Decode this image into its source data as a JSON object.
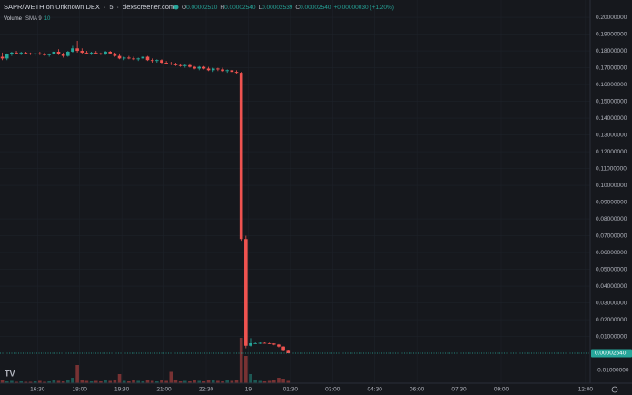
{
  "chart_data": {
    "type": "candlestick",
    "title": "SAPR/WETH on Unknown DEX",
    "interval": "5",
    "source": "dexscreener.com",
    "ohlc_legend": [
      {
        "key": "O",
        "value": "0.00002510"
      },
      {
        "key": "H",
        "value": "0.00002540"
      },
      {
        "key": "L",
        "value": "0.00002539"
      },
      {
        "key": "C",
        "value": "0.00002540"
      }
    ],
    "change": "+0.00000030 (+1.20%)",
    "volume_legend": {
      "name": "Volume",
      "indicator": "SMA 9",
      "value": "10"
    },
    "up_color": "#26a69a",
    "down_color": "#ef5350",
    "grid": true,
    "x": [
      915,
      925,
      935,
      945,
      955,
      965,
      975,
      985,
      995,
      1005,
      1015,
      1025,
      1035,
      1045,
      1055,
      1065,
      1075,
      1085,
      1095,
      1105,
      1115,
      1125,
      1135,
      1145,
      1155,
      1165,
      1175,
      1185,
      1195,
      1205,
      1215,
      1225,
      1235,
      1245,
      1255,
      1265,
      1275,
      1285,
      1295,
      1305,
      1315,
      1325,
      1335,
      1345,
      1355,
      1365,
      1375,
      1385,
      1395,
      1405,
      1415,
      1425,
      1435,
      1445,
      1455,
      1465,
      1475,
      1485,
      1495,
      1505,
      1515,
      1525
    ],
    "open": [
      0.1765,
      0.1755,
      0.178,
      0.179,
      0.1785,
      0.179,
      0.1785,
      0.178,
      0.1785,
      0.178,
      0.1775,
      0.178,
      0.1795,
      0.178,
      0.177,
      0.1795,
      0.1815,
      0.18,
      0.179,
      0.1785,
      0.179,
      0.1785,
      0.178,
      0.1795,
      0.1785,
      0.177,
      0.1755,
      0.176,
      0.1755,
      0.175,
      0.1755,
      0.1765,
      0.1745,
      0.174,
      0.1745,
      0.173,
      0.1725,
      0.172,
      0.1715,
      0.171,
      0.1715,
      0.1705,
      0.1695,
      0.1705,
      0.1695,
      0.1685,
      0.1695,
      0.169,
      0.168,
      0.1685,
      0.1675,
      0.167,
      0.068,
      0.0045,
      0.006,
      0.006,
      0.0062,
      0.006,
      0.0058,
      0.0052,
      0.004,
      0.002
    ],
    "high": [
      0.179,
      0.1785,
      0.1795,
      0.18,
      0.1795,
      0.1795,
      0.179,
      0.179,
      0.1795,
      0.179,
      0.1785,
      0.18,
      0.181,
      0.179,
      0.18,
      0.183,
      0.186,
      0.1815,
      0.18,
      0.1795,
      0.18,
      0.179,
      0.18,
      0.18,
      0.179,
      0.1785,
      0.1765,
      0.177,
      0.1765,
      0.176,
      0.177,
      0.177,
      0.1755,
      0.175,
      0.175,
      0.174,
      0.1735,
      0.173,
      0.1725,
      0.172,
      0.1725,
      0.171,
      0.171,
      0.171,
      0.1705,
      0.17,
      0.17,
      0.17,
      0.169,
      0.169,
      0.1685,
      0.1675,
      0.07,
      0.009,
      0.0065,
      0.0065,
      0.0065,
      0.0063,
      0.006,
      0.0055,
      0.0042,
      0.0022
    ],
    "low": [
      0.1745,
      0.1745,
      0.177,
      0.178,
      0.1775,
      0.178,
      0.1775,
      0.177,
      0.1775,
      0.177,
      0.1765,
      0.1775,
      0.1775,
      0.176,
      0.1765,
      0.179,
      0.179,
      0.178,
      0.178,
      0.1775,
      0.178,
      0.1775,
      0.1775,
      0.178,
      0.1765,
      0.175,
      0.1745,
      0.175,
      0.1745,
      0.174,
      0.1745,
      0.174,
      0.173,
      0.173,
      0.1725,
      0.172,
      0.1715,
      0.171,
      0.1705,
      0.17,
      0.17,
      0.169,
      0.1685,
      0.169,
      0.168,
      0.1675,
      0.168,
      0.1675,
      0.167,
      0.167,
      0.1665,
      0.067,
      0.003,
      0.004,
      0.0055,
      0.0055,
      0.0058,
      0.0055,
      0.0048,
      0.0035,
      0.0015,
      2.54e-05
    ],
    "close": [
      0.1755,
      0.178,
      0.179,
      0.1785,
      0.179,
      0.1785,
      0.178,
      0.1785,
      0.178,
      0.1775,
      0.178,
      0.1795,
      0.178,
      0.177,
      0.1795,
      0.1815,
      0.18,
      0.179,
      0.1785,
      0.179,
      0.1785,
      0.178,
      0.1795,
      0.1785,
      0.177,
      0.1755,
      0.176,
      0.1755,
      0.175,
      0.1755,
      0.1765,
      0.1745,
      0.174,
      0.1745,
      0.173,
      0.1725,
      0.172,
      0.1715,
      0.171,
      0.1715,
      0.1705,
      0.1695,
      0.1705,
      0.1695,
      0.1685,
      0.1695,
      0.169,
      0.168,
      0.1685,
      0.1675,
      0.167,
      0.068,
      0.0045,
      0.006,
      0.006,
      0.0062,
      0.006,
      0.0058,
      0.0052,
      0.004,
      0.002,
      2.54e-05
    ],
    "volume": [
      6,
      4,
      5,
      3,
      4,
      3,
      3,
      4,
      5,
      3,
      4,
      6,
      5,
      4,
      8,
      12,
      40,
      6,
      5,
      4,
      5,
      4,
      6,
      5,
      8,
      20,
      5,
      4,
      6,
      5,
      4,
      8,
      5,
      4,
      6,
      5,
      25,
      6,
      4,
      5,
      4,
      6,
      5,
      4,
      8,
      6,
      5,
      4,
      6,
      5,
      8,
      100,
      60,
      20,
      6,
      5,
      4,
      5,
      8,
      12,
      10,
      5
    ],
    "xlim": [
      910,
      2170
    ],
    "xticks": [
      {
        "value": 990,
        "label": "16:30"
      },
      {
        "value": 1080,
        "label": "18:00"
      },
      {
        "value": 1170,
        "label": "19:30"
      },
      {
        "value": 1260,
        "label": "21:00"
      },
      {
        "value": 1350,
        "label": "22:30"
      },
      {
        "value": 1440,
        "label": "19"
      },
      {
        "value": 1530,
        "label": "01:30"
      },
      {
        "value": 1620,
        "label": "03:00"
      },
      {
        "value": 1710,
        "label": "04:30"
      },
      {
        "value": 1800,
        "label": "06:00"
      },
      {
        "value": 1890,
        "label": "07:30"
      },
      {
        "value": 1980,
        "label": "09:00"
      },
      {
        "value": 2160,
        "label": "12:00"
      }
    ],
    "ylim": [
      -0.0178,
      0.2103
    ],
    "yticks": [
      {
        "value": 0.2,
        "label": "0.20000000"
      },
      {
        "value": 0.19,
        "label": "0.19000000"
      },
      {
        "value": 0.18,
        "label": "0.18000000"
      },
      {
        "value": 0.17,
        "label": "0.17000000"
      },
      {
        "value": 0.16,
        "label": "0.16000000"
      },
      {
        "value": 0.15,
        "label": "0.15000000"
      },
      {
        "value": 0.14,
        "label": "0.14000000"
      },
      {
        "value": 0.13,
        "label": "0.13000000"
      },
      {
        "value": 0.12,
        "label": "0.12000000"
      },
      {
        "value": 0.11,
        "label": "0.11000000"
      },
      {
        "value": 0.1,
        "label": "0.10000000"
      },
      {
        "value": 0.09,
        "label": "0.09000000"
      },
      {
        "value": 0.08,
        "label": "0.08000000"
      },
      {
        "value": 0.07,
        "label": "0.07000000"
      },
      {
        "value": 0.06,
        "label": "0.06000000"
      },
      {
        "value": 0.05,
        "label": "0.05000000"
      },
      {
        "value": 0.04,
        "label": "0.04000000"
      },
      {
        "value": 0.03,
        "label": "0.03000000"
      },
      {
        "value": 0.02,
        "label": "0.02000000"
      },
      {
        "value": 0.01,
        "label": "0.01000000"
      },
      {
        "value": -0.01,
        "label": "-0.01000000"
      }
    ],
    "last_price": {
      "value": 2.54e-05,
      "label": "0.00002540"
    }
  }
}
